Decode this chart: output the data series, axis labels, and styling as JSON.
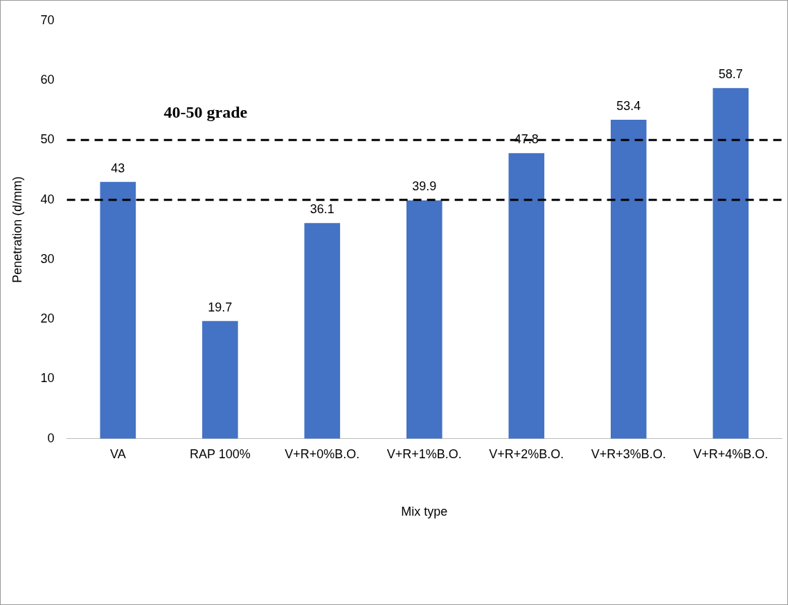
{
  "chart_data": {
    "type": "bar",
    "categories": [
      "VA",
      "RAP 100%",
      "V+R+0%B.O.",
      "V+R+1%B.O.",
      "V+R+2%B.O.",
      "V+R+3%B.O.",
      "V+R+4%B.O."
    ],
    "values": [
      43,
      19.7,
      36.1,
      39.9,
      47.8,
      53.4,
      58.7
    ],
    "color": "#4472c4",
    "xlabel": "Mix type",
    "ylabel": "Penetration (d/mm)",
    "ylim": [
      0,
      70
    ],
    "yticks": [
      0,
      10,
      20,
      30,
      40,
      50,
      60,
      70
    ],
    "grid": false,
    "legend": false,
    "data_labels": true,
    "ref_lines": [
      {
        "axis": "y",
        "value": 40,
        "color": "#000000",
        "line_style": "dashed"
      },
      {
        "axis": "y",
        "value": 50,
        "color": "#000000",
        "line_style": "dashed"
      }
    ],
    "annotations": [
      "40-50 grade"
    ]
  }
}
